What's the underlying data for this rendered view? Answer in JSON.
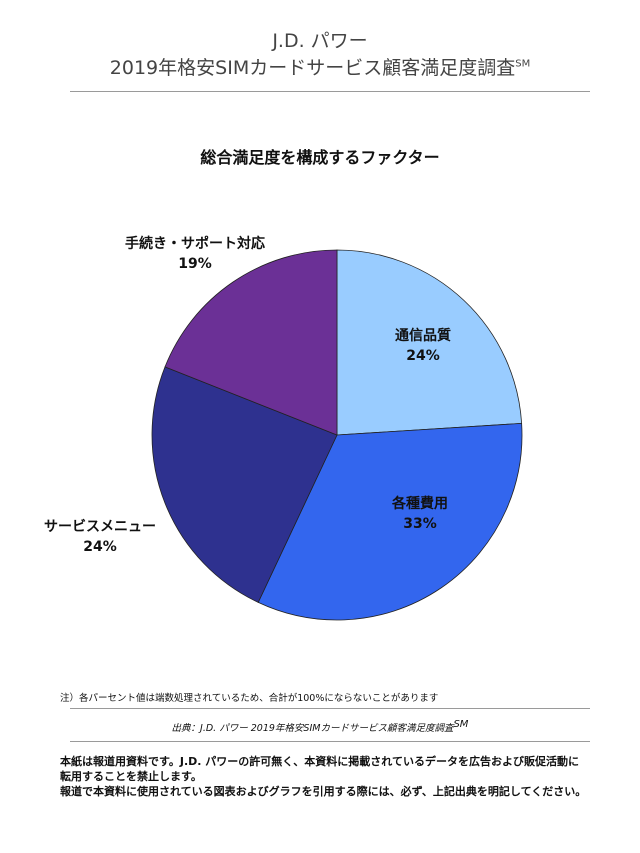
{
  "header": {
    "line1": "J.D. パワー",
    "line2": "2019年格安SIMカードサービス顧客満足度調査",
    "line2_sup": "SM"
  },
  "chart_data": {
    "type": "pie",
    "title": "総合満足度を構成するファクター",
    "slices": [
      {
        "label": "通信品質",
        "value": 24,
        "display": "24%",
        "color": "#99ccff"
      },
      {
        "label": "各種費用",
        "value": 33,
        "display": "33%",
        "color": "#3366ee"
      },
      {
        "label": "サービスメニュー",
        "value": 24,
        "display": "24%",
        "color": "#2e318f"
      },
      {
        "label": "手続き・サポート対応",
        "value": 19,
        "display": "19%",
        "color": "#6b3096"
      }
    ]
  },
  "note": "注）各パーセント値は端数処理されているため、合計が100%にならないことがあります",
  "source": "出典：J.D. パワー 2019年格安SIMカードサービス顧客満足度調査",
  "source_sup": "SM",
  "disclaimer": [
    "本紙は報道用資料です。J.D. パワーの許可無く、本資料に掲載されているデータを広告および販促活動に",
    "転用することを禁止します。",
    "報道で本資料に使用されている図表およびグラフを引用する際には、必ず、上記出典を明記してください。"
  ]
}
